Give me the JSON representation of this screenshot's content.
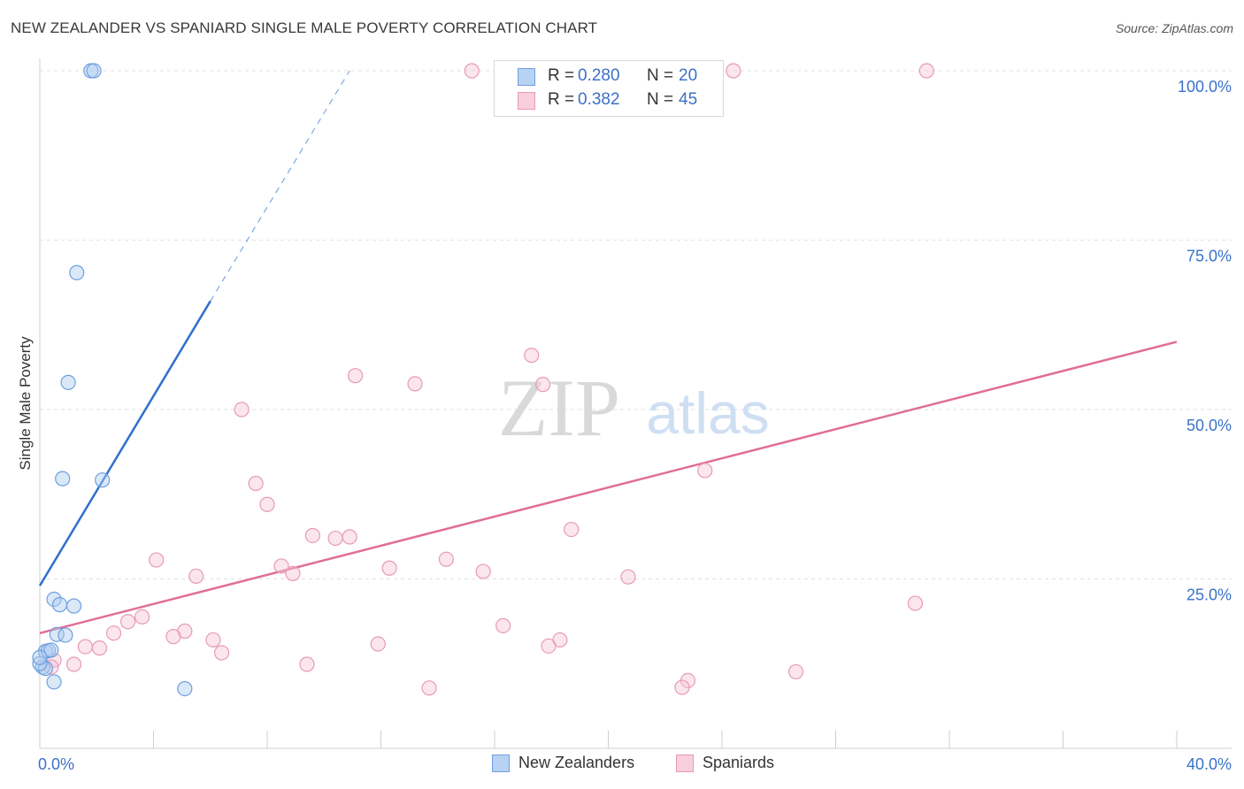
{
  "chart_data": {
    "type": "scatter",
    "title": "NEW ZEALANDER VS SPANIARD SINGLE MALE POVERTY CORRELATION CHART",
    "source": "Source: ZipAtlas.com",
    "xlabel": "",
    "ylabel": "Single Male Poverty",
    "xlim": [
      0,
      40
    ],
    "ylim": [
      0,
      100
    ],
    "x_tick_labels": [
      "0.0%",
      "40.0%"
    ],
    "y_tick_labels": [
      {
        "value": 100,
        "label": "100.0%"
      },
      {
        "value": 75,
        "label": "75.0%"
      },
      {
        "value": 50,
        "label": "50.0%"
      },
      {
        "value": 25,
        "label": "25.0%"
      }
    ],
    "watermark": {
      "zip": "ZIP",
      "atlas": "atlas"
    },
    "series": [
      {
        "name": "New Zealanders",
        "color": "#6f9fdf",
        "fill": "#aecbf0",
        "line_color": "#2e6fcc",
        "R": "0.280",
        "N": "20",
        "trend": {
          "x0": 0.0,
          "y0": 24.0,
          "x1": 6.0,
          "y1": 66.0,
          "dash_to_x": 10.9,
          "dash_to_y": 100.0
        },
        "points": [
          [
            1.8,
            100.0
          ],
          [
            1.9,
            100.0
          ],
          [
            1.3,
            70.2
          ],
          [
            1.0,
            54.0
          ],
          [
            0.8,
            39.8
          ],
          [
            2.2,
            39.6
          ],
          [
            0.5,
            22.0
          ],
          [
            0.7,
            21.2
          ],
          [
            1.2,
            21.0
          ],
          [
            0.6,
            16.8
          ],
          [
            0.9,
            16.7
          ],
          [
            0.2,
            14.3
          ],
          [
            0.3,
            14.4
          ],
          [
            0.4,
            14.5
          ],
          [
            0.1,
            12.0
          ],
          [
            0.2,
            11.8
          ],
          [
            0.0,
            12.5
          ],
          [
            0.0,
            13.4
          ],
          [
            0.5,
            9.8
          ],
          [
            5.1,
            8.8
          ]
        ]
      },
      {
        "name": "Spaniards",
        "color": "#e89ab3",
        "fill": "#f7c7d6",
        "line_color": "#e06e98",
        "R": "0.382",
        "N": "45",
        "trend": {
          "x0": 0.0,
          "y0": 17.0,
          "x1": 40.0,
          "y1": 60.0
        },
        "points": [
          [
            15.2,
            100.0
          ],
          [
            24.4,
            100.0
          ],
          [
            31.2,
            100.0
          ],
          [
            17.3,
            58.0
          ],
          [
            11.1,
            55.0
          ],
          [
            13.2,
            53.8
          ],
          [
            17.7,
            53.7
          ],
          [
            7.1,
            50.0
          ],
          [
            23.4,
            41.0
          ],
          [
            7.6,
            39.1
          ],
          [
            8.0,
            36.0
          ],
          [
            18.7,
            32.3
          ],
          [
            9.6,
            31.4
          ],
          [
            10.4,
            31.0
          ],
          [
            10.9,
            31.2
          ],
          [
            4.1,
            27.8
          ],
          [
            14.3,
            27.9
          ],
          [
            8.5,
            26.9
          ],
          [
            12.3,
            26.6
          ],
          [
            8.9,
            25.8
          ],
          [
            15.6,
            26.1
          ],
          [
            5.5,
            25.4
          ],
          [
            20.7,
            25.3
          ],
          [
            30.8,
            21.4
          ],
          [
            3.6,
            19.4
          ],
          [
            3.1,
            18.7
          ],
          [
            16.3,
            18.1
          ],
          [
            5.1,
            17.3
          ],
          [
            2.6,
            17.0
          ],
          [
            4.7,
            16.5
          ],
          [
            6.1,
            16.0
          ],
          [
            18.3,
            16.0
          ],
          [
            11.9,
            15.4
          ],
          [
            17.9,
            15.1
          ],
          [
            1.6,
            15.0
          ],
          [
            2.1,
            14.8
          ],
          [
            6.4,
            14.1
          ],
          [
            0.5,
            13.0
          ],
          [
            0.4,
            12.0
          ],
          [
            1.2,
            12.4
          ],
          [
            9.4,
            12.4
          ],
          [
            26.6,
            11.3
          ],
          [
            22.8,
            10.0
          ],
          [
            22.6,
            9.0
          ],
          [
            13.7,
            8.9
          ]
        ]
      }
    ]
  }
}
